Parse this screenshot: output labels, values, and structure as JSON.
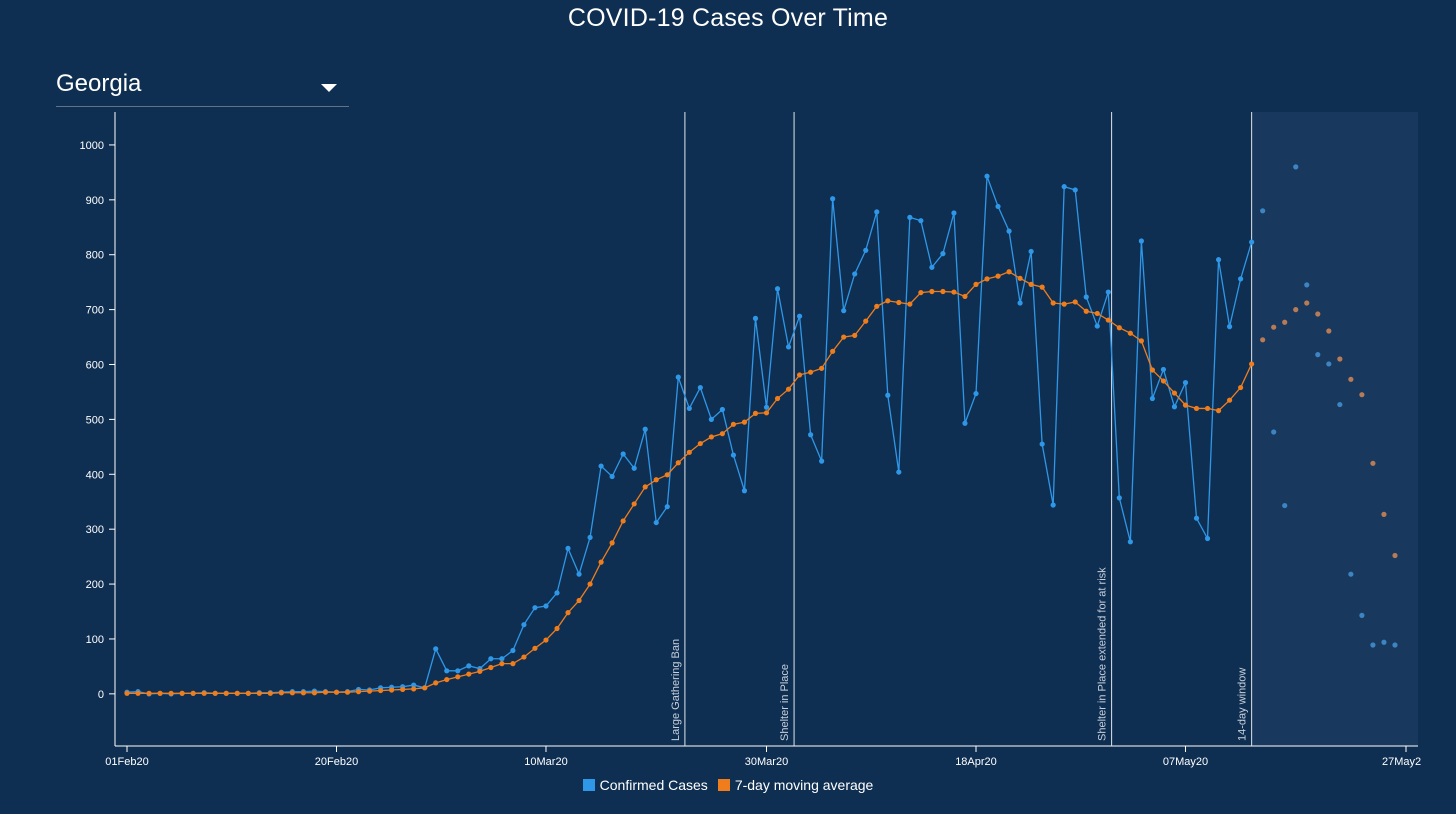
{
  "page": {
    "title": "COVID-19 Cases Over Time"
  },
  "region_select": {
    "value": "Georgia",
    "chevron": "chevron-down-icon"
  },
  "colors": {
    "background": "#0f2f52",
    "forecast_band": "#18385d",
    "confirmed": "#2f97e7",
    "moving_avg": "#f07d1c",
    "forecast_confirmed": "#3c84c2",
    "forecast_avg": "#b77b57",
    "event_line": "#dfe6ee"
  },
  "legend": {
    "items": [
      {
        "label": "Confirmed Cases",
        "color": "#2f97e7"
      },
      {
        "label": "7-day moving average",
        "color": "#f07d1c"
      }
    ]
  },
  "chart_data": {
    "type": "line",
    "title": "COVID-19 Cases Over Time",
    "xlabel": "",
    "ylabel": "",
    "x_start": "2020-02-01",
    "x_tick_labels": [
      "01Feb20",
      "20Feb20",
      "10Mar20",
      "30Mar20",
      "18Apr20",
      "07May20",
      "27May2"
    ],
    "x_tick_days": [
      0,
      19,
      38,
      58,
      77,
      96,
      116
    ],
    "y_ticks": [
      0,
      100,
      200,
      300,
      400,
      500,
      600,
      700,
      800,
      900,
      1000
    ],
    "ylim": [
      -95,
      1060
    ],
    "xlim": [
      -1,
      116
    ],
    "grid": false,
    "legend_position": "bottom-center",
    "events": [
      {
        "label": "Large Gathering Ban",
        "day": 50.6
      },
      {
        "label": "Shelter in Place",
        "day": 60.5
      },
      {
        "label": "Shelter in Place extended for at risk",
        "day": 89.3
      },
      {
        "label": "14-day window",
        "day": 102
      }
    ],
    "forecast_window": {
      "from_day": 102,
      "to_day": 116
    },
    "series": [
      {
        "name": "Confirmed Cases",
        "values": [
          3,
          4,
          0,
          1,
          0,
          1,
          1,
          2,
          1,
          1,
          1,
          1,
          2,
          2,
          3,
          4,
          4,
          5,
          4,
          3,
          4,
          8,
          7,
          11,
          12,
          13,
          16,
          11,
          82,
          42,
          42,
          51,
          46,
          64,
          64,
          79,
          126,
          157,
          160,
          184,
          265,
          218,
          285,
          415,
          396,
          437,
          411,
          482,
          312,
          341,
          577,
          520,
          558,
          500,
          518,
          435,
          370,
          684,
          522,
          738,
          632,
          688,
          472,
          424,
          902,
          698,
          765,
          808,
          878,
          544,
          404,
          868,
          862,
          777,
          802,
          876,
          493,
          547,
          943,
          888,
          843,
          712,
          806,
          455,
          344,
          924,
          918,
          723,
          670,
          732,
          357,
          277,
          825,
          538,
          591,
          523,
          567,
          320,
          283,
          791,
          669,
          756,
          823
        ]
      },
      {
        "name": "7-day moving average",
        "values": [
          1,
          1,
          1,
          1,
          1,
          1,
          1,
          1,
          1,
          1,
          1,
          1,
          1,
          1,
          2,
          2,
          2,
          2,
          3,
          3,
          3,
          4,
          5,
          6,
          7,
          8,
          9,
          11,
          20,
          26,
          31,
          36,
          41,
          48,
          55,
          55,
          67,
          83,
          98,
          119,
          148,
          170,
          200,
          240,
          275,
          315,
          346,
          377,
          390,
          399,
          421,
          440,
          456,
          468,
          474,
          491,
          495,
          511,
          512,
          538,
          555,
          581,
          586,
          593,
          624,
          650,
          653,
          679,
          706,
          716,
          713,
          710,
          731,
          733,
          733,
          732,
          724,
          746,
          756,
          761,
          769,
          757,
          746,
          741,
          712,
          710,
          714,
          697,
          693,
          681,
          667,
          657,
          643,
          590,
          570,
          548,
          526,
          520,
          520,
          516,
          535,
          558,
          601
        ]
      },
      {
        "name": "",
        "forecast": true,
        "x_day_start": 103,
        "values": [
          880,
          477,
          343,
          960,
          745,
          618,
          601,
          527,
          218,
          143,
          89,
          94,
          89
        ]
      },
      {
        "name": "",
        "forecast": true,
        "x_day_start": 103,
        "values": [
          645,
          668,
          677,
          700,
          712,
          692,
          661,
          610,
          573,
          545,
          420,
          327,
          252
        ]
      }
    ]
  }
}
